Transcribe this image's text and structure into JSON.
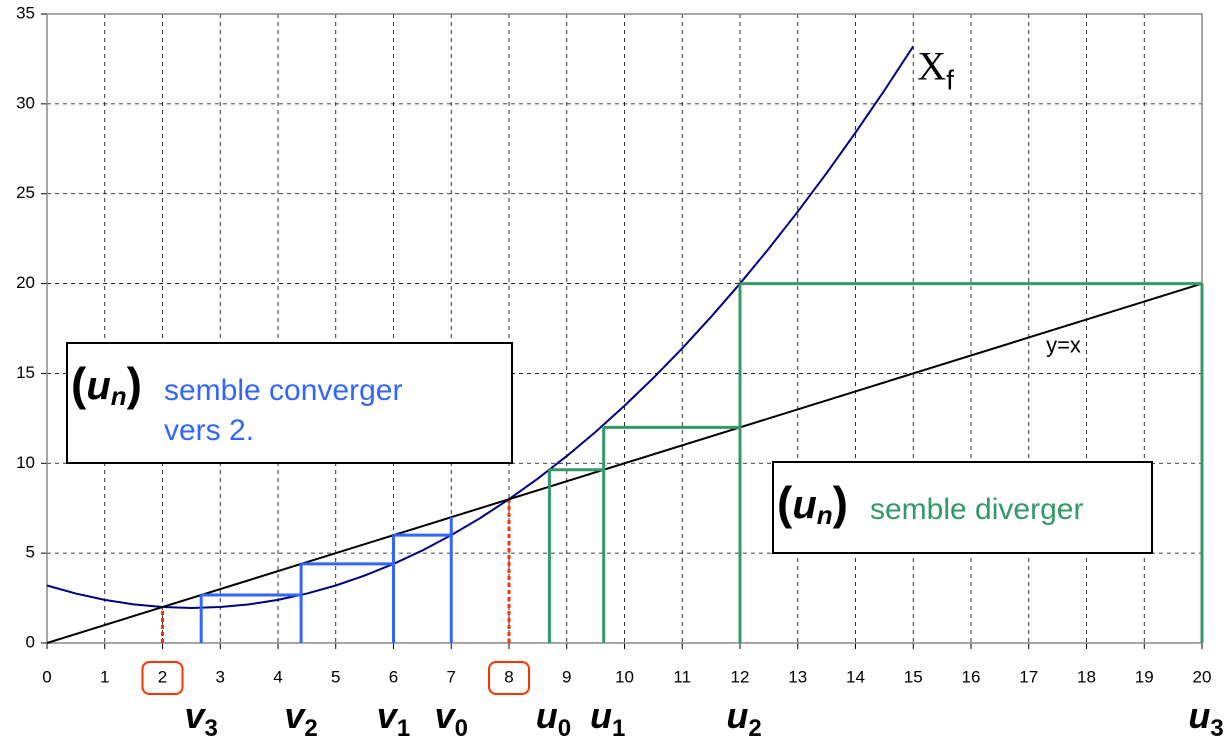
{
  "chart_data": {
    "type": "line",
    "xlim": [
      0,
      20
    ],
    "ylim": [
      0,
      35
    ],
    "xticks": [
      0,
      1,
      2,
      3,
      4,
      5,
      6,
      7,
      8,
      9,
      10,
      11,
      12,
      13,
      14,
      15,
      16,
      17,
      18,
      19,
      20
    ],
    "yticks": [
      0,
      5,
      10,
      15,
      20,
      25,
      30,
      35
    ],
    "grid": true,
    "fixed_points": [
      2,
      8
    ],
    "fixed_color": "#ff3300",
    "series": [
      {
        "name": "X",
        "name_sub": "f",
        "color": "#000080",
        "x": [
          0,
          0.5,
          1,
          1.5,
          2,
          2.5,
          3,
          3.5,
          4,
          4.5,
          5,
          5.5,
          6,
          6.5,
          7,
          7.5,
          8,
          8.5,
          9,
          9.5,
          10,
          10.5,
          11,
          11.5,
          12,
          12.5,
          13,
          13.5,
          14,
          14.5,
          15
        ],
        "y": [
          3.2,
          2.75,
          2.4,
          2.15,
          2,
          1.95,
          2,
          2.15,
          2.4,
          2.75,
          3.2,
          3.75,
          4.4,
          5.15,
          6,
          6.95,
          8,
          9.15,
          10.4,
          11.75,
          13.2,
          14.75,
          16.4,
          18.15,
          20,
          21.95,
          24,
          26.15,
          28.4,
          30.75,
          33.2
        ]
      },
      {
        "name": "y=x",
        "color": "#000000",
        "x": [
          0,
          20
        ],
        "y": [
          0,
          20
        ]
      }
    ],
    "sequences": [
      {
        "letter": "v",
        "color": "#3366ff",
        "values": [
          7,
          6,
          4.4,
          2.67
        ],
        "subs": [
          "0",
          "1",
          "2",
          "3"
        ]
      },
      {
        "letter": "u",
        "color": "#339966",
        "values": [
          8.7,
          9.64,
          12,
          20
        ],
        "subs": [
          "0",
          "1",
          "2",
          "3"
        ]
      }
    ],
    "annotations": [
      {
        "open": "(",
        "letter": "u",
        "sub": "n",
        "close": ")",
        "lines": [
          "semble converger",
          "vers 2."
        ],
        "color": "#3366ff"
      },
      {
        "open": "(",
        "letter": "u",
        "sub": "n",
        "close": ")",
        "lines": [
          "semble diverger"
        ],
        "color": "#339966"
      }
    ]
  }
}
